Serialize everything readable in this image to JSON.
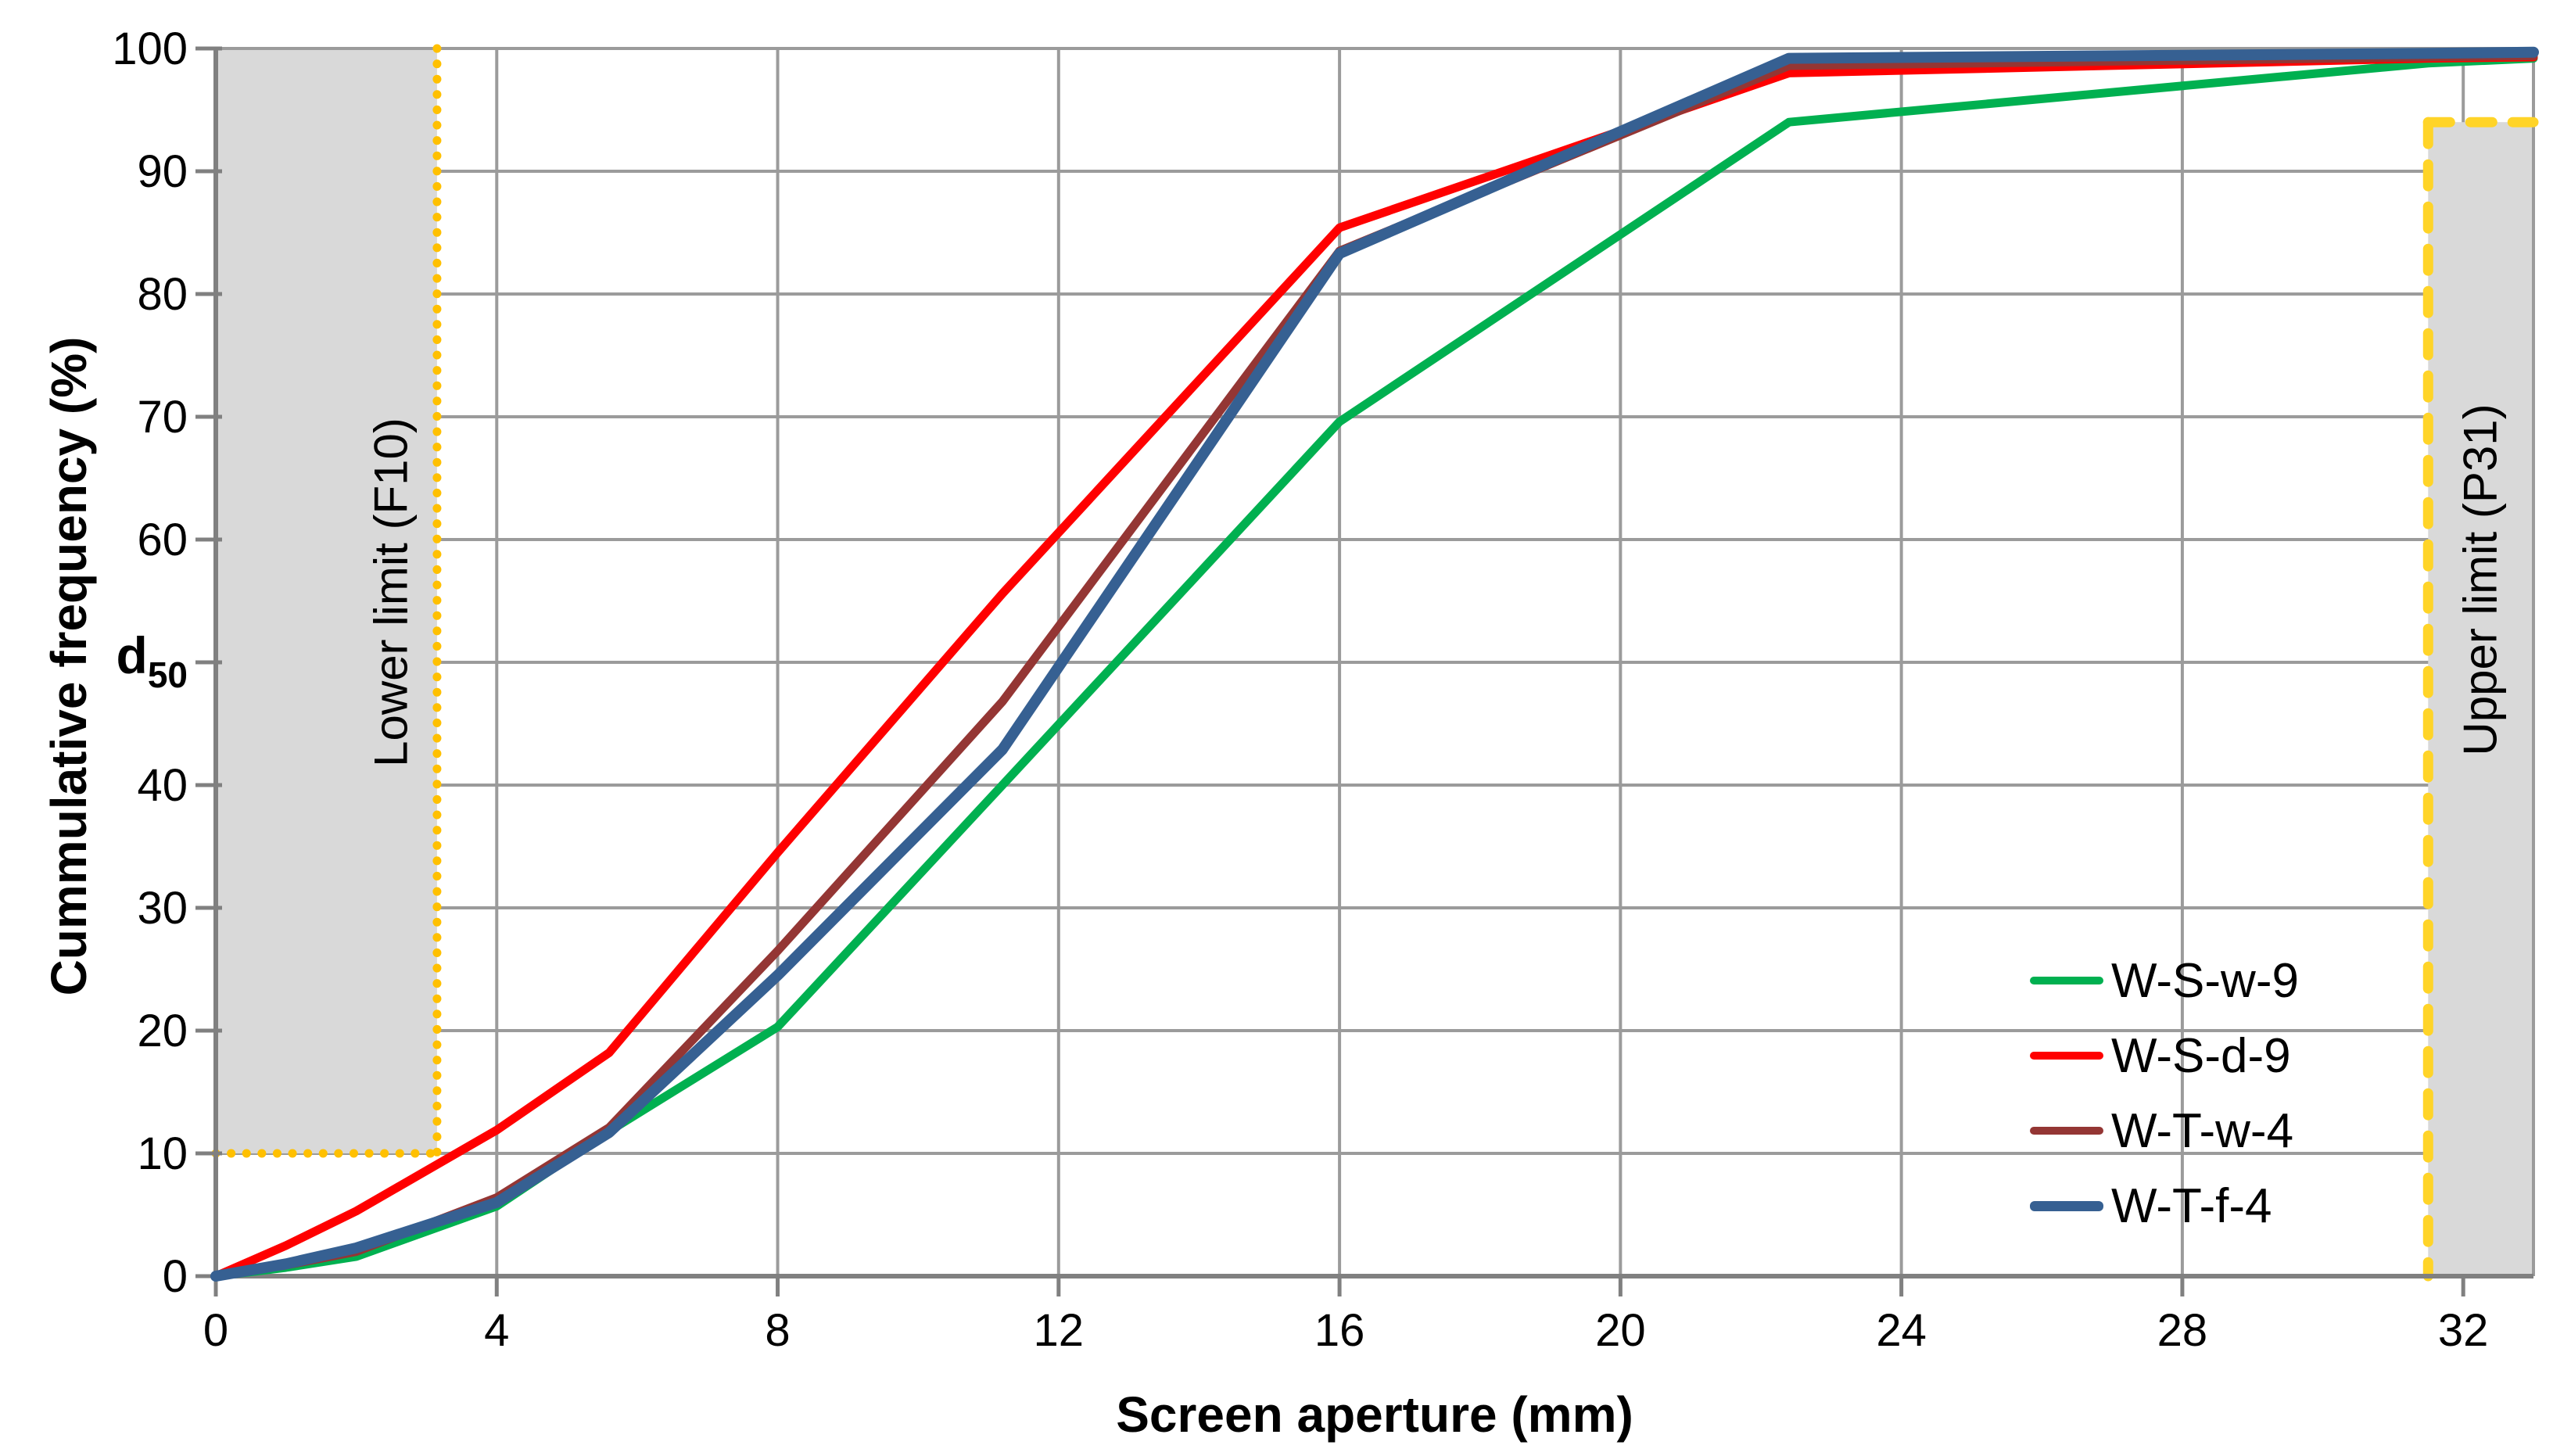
{
  "chart_data": {
    "type": "line",
    "title": "",
    "xlabel": "Screen aperture (mm)",
    "ylabel": "Cummulative frequency (%)",
    "xlim": [
      0,
      33
    ],
    "ylim": [
      0,
      100
    ],
    "x_ticks": [
      0,
      4,
      8,
      12,
      16,
      20,
      24,
      28,
      32
    ],
    "y_ticks": [
      0,
      10,
      20,
      30,
      40,
      50,
      60,
      70,
      80,
      90,
      100
    ],
    "y_tick_50_replaced_by": "d50 marker",
    "grid": true,
    "legend_position": "right-lower-inside",
    "x": [
      0,
      1,
      2,
      4,
      5.6,
      8,
      11.2,
      16,
      22.4,
      31.5,
      33
    ],
    "series": [
      {
        "name": "W-S-w-9",
        "color": "#00B050",
        "width": 11,
        "values": [
          0,
          0.7,
          1.6,
          5.7,
          11.8,
          20.3,
          40.0,
          69.6,
          94.0,
          98.8,
          99.2
        ]
      },
      {
        "name": "W-S-d-9",
        "color": "#FF0000",
        "width": 11,
        "values": [
          0,
          2.5,
          5.3,
          11.9,
          18.2,
          34.5,
          55.6,
          85.4,
          98.0,
          99.2,
          99.3
        ]
      },
      {
        "name": "W-T-w-4",
        "color": "#943634",
        "width": 11,
        "values": [
          0,
          0.9,
          2.0,
          6.4,
          12.1,
          26.5,
          46.8,
          83.5,
          98.6,
          99.3,
          99.4
        ]
      },
      {
        "name": "W-T-f-4",
        "color": "#366092",
        "width": 14,
        "values": [
          0,
          1.0,
          2.3,
          6.0,
          11.7,
          24.5,
          42.9,
          83.3,
          99.2,
          99.6,
          99.7
        ]
      }
    ],
    "annotations": {
      "lower_limit": {
        "label": "Lower limit (F10)",
        "x_mm": 3.15,
        "y_from": 10,
        "y_to": 100,
        "fill": "#D9D9D9",
        "border_color": "#FFC000",
        "border_style": "dotted"
      },
      "upper_limit": {
        "label": "Upper limit (P31)",
        "x_mm": 31.5,
        "y_from": 0,
        "y_to": 94,
        "fill": "#D9D9D9",
        "border_color": "#FFD428",
        "border_style": "dashed"
      }
    },
    "colors": {
      "gridline": "#9B9B9B",
      "axis": "#808080"
    }
  },
  "labels": {
    "d50": {
      "main": "d",
      "sub": "50"
    }
  }
}
